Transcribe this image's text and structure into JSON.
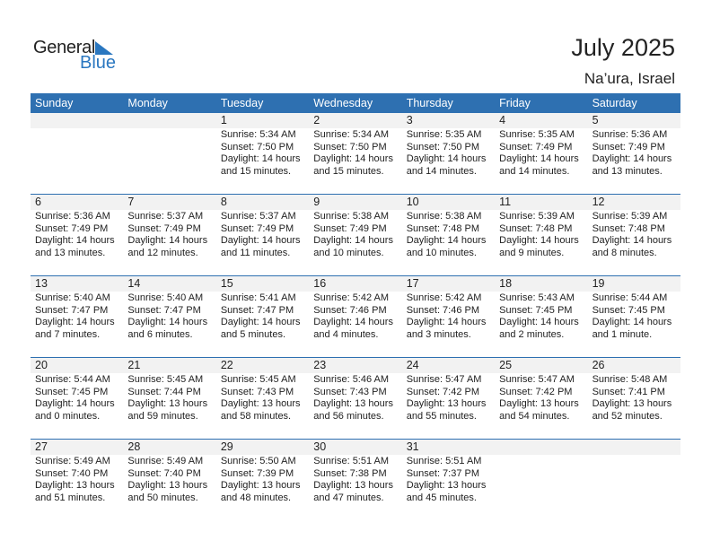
{
  "logo": {
    "word1": "General",
    "word2": "Blue",
    "accent": "#2a77c0"
  },
  "title": "July 2025",
  "location": "Na’ura, Israel",
  "colors": {
    "header_bg": "#2e70b1",
    "band_bg": "#f2f2f2"
  },
  "weekdays": [
    "Sunday",
    "Monday",
    "Tuesday",
    "Wednesday",
    "Thursday",
    "Friday",
    "Saturday"
  ],
  "weeks": [
    [
      null,
      null,
      {
        "day": "1",
        "sunrise": "Sunrise: 5:34 AM",
        "sunset": "Sunset: 7:50 PM",
        "daylight": "Daylight: 14 hours",
        "minutes": "and 15 minutes."
      },
      {
        "day": "2",
        "sunrise": "Sunrise: 5:34 AM",
        "sunset": "Sunset: 7:50 PM",
        "daylight": "Daylight: 14 hours",
        "minutes": "and 15 minutes."
      },
      {
        "day": "3",
        "sunrise": "Sunrise: 5:35 AM",
        "sunset": "Sunset: 7:50 PM",
        "daylight": "Daylight: 14 hours",
        "minutes": "and 14 minutes."
      },
      {
        "day": "4",
        "sunrise": "Sunrise: 5:35 AM",
        "sunset": "Sunset: 7:49 PM",
        "daylight": "Daylight: 14 hours",
        "minutes": "and 14 minutes."
      },
      {
        "day": "5",
        "sunrise": "Sunrise: 5:36 AM",
        "sunset": "Sunset: 7:49 PM",
        "daylight": "Daylight: 14 hours",
        "minutes": "and 13 minutes."
      }
    ],
    [
      {
        "day": "6",
        "sunrise": "Sunrise: 5:36 AM",
        "sunset": "Sunset: 7:49 PM",
        "daylight": "Daylight: 14 hours",
        "minutes": "and 13 minutes."
      },
      {
        "day": "7",
        "sunrise": "Sunrise: 5:37 AM",
        "sunset": "Sunset: 7:49 PM",
        "daylight": "Daylight: 14 hours",
        "minutes": "and 12 minutes."
      },
      {
        "day": "8",
        "sunrise": "Sunrise: 5:37 AM",
        "sunset": "Sunset: 7:49 PM",
        "daylight": "Daylight: 14 hours",
        "minutes": "and 11 minutes."
      },
      {
        "day": "9",
        "sunrise": "Sunrise: 5:38 AM",
        "sunset": "Sunset: 7:49 PM",
        "daylight": "Daylight: 14 hours",
        "minutes": "and 10 minutes."
      },
      {
        "day": "10",
        "sunrise": "Sunrise: 5:38 AM",
        "sunset": "Sunset: 7:48 PM",
        "daylight": "Daylight: 14 hours",
        "minutes": "and 10 minutes."
      },
      {
        "day": "11",
        "sunrise": "Sunrise: 5:39 AM",
        "sunset": "Sunset: 7:48 PM",
        "daylight": "Daylight: 14 hours",
        "minutes": "and 9 minutes."
      },
      {
        "day": "12",
        "sunrise": "Sunrise: 5:39 AM",
        "sunset": "Sunset: 7:48 PM",
        "daylight": "Daylight: 14 hours",
        "minutes": "and 8 minutes."
      }
    ],
    [
      {
        "day": "13",
        "sunrise": "Sunrise: 5:40 AM",
        "sunset": "Sunset: 7:47 PM",
        "daylight": "Daylight: 14 hours",
        "minutes": "and 7 minutes."
      },
      {
        "day": "14",
        "sunrise": "Sunrise: 5:40 AM",
        "sunset": "Sunset: 7:47 PM",
        "daylight": "Daylight: 14 hours",
        "minutes": "and 6 minutes."
      },
      {
        "day": "15",
        "sunrise": "Sunrise: 5:41 AM",
        "sunset": "Sunset: 7:47 PM",
        "daylight": "Daylight: 14 hours",
        "minutes": "and 5 minutes."
      },
      {
        "day": "16",
        "sunrise": "Sunrise: 5:42 AM",
        "sunset": "Sunset: 7:46 PM",
        "daylight": "Daylight: 14 hours",
        "minutes": "and 4 minutes."
      },
      {
        "day": "17",
        "sunrise": "Sunrise: 5:42 AM",
        "sunset": "Sunset: 7:46 PM",
        "daylight": "Daylight: 14 hours",
        "minutes": "and 3 minutes."
      },
      {
        "day": "18",
        "sunrise": "Sunrise: 5:43 AM",
        "sunset": "Sunset: 7:45 PM",
        "daylight": "Daylight: 14 hours",
        "minutes": "and 2 minutes."
      },
      {
        "day": "19",
        "sunrise": "Sunrise: 5:44 AM",
        "sunset": "Sunset: 7:45 PM",
        "daylight": "Daylight: 14 hours",
        "minutes": "and 1 minute."
      }
    ],
    [
      {
        "day": "20",
        "sunrise": "Sunrise: 5:44 AM",
        "sunset": "Sunset: 7:45 PM",
        "daylight": "Daylight: 14 hours",
        "minutes": "and 0 minutes."
      },
      {
        "day": "21",
        "sunrise": "Sunrise: 5:45 AM",
        "sunset": "Sunset: 7:44 PM",
        "daylight": "Daylight: 13 hours",
        "minutes": "and 59 minutes."
      },
      {
        "day": "22",
        "sunrise": "Sunrise: 5:45 AM",
        "sunset": "Sunset: 7:43 PM",
        "daylight": "Daylight: 13 hours",
        "minutes": "and 58 minutes."
      },
      {
        "day": "23",
        "sunrise": "Sunrise: 5:46 AM",
        "sunset": "Sunset: 7:43 PM",
        "daylight": "Daylight: 13 hours",
        "minutes": "and 56 minutes."
      },
      {
        "day": "24",
        "sunrise": "Sunrise: 5:47 AM",
        "sunset": "Sunset: 7:42 PM",
        "daylight": "Daylight: 13 hours",
        "minutes": "and 55 minutes."
      },
      {
        "day": "25",
        "sunrise": "Sunrise: 5:47 AM",
        "sunset": "Sunset: 7:42 PM",
        "daylight": "Daylight: 13 hours",
        "minutes": "and 54 minutes."
      },
      {
        "day": "26",
        "sunrise": "Sunrise: 5:48 AM",
        "sunset": "Sunset: 7:41 PM",
        "daylight": "Daylight: 13 hours",
        "minutes": "and 52 minutes."
      }
    ],
    [
      {
        "day": "27",
        "sunrise": "Sunrise: 5:49 AM",
        "sunset": "Sunset: 7:40 PM",
        "daylight": "Daylight: 13 hours",
        "minutes": "and 51 minutes."
      },
      {
        "day": "28",
        "sunrise": "Sunrise: 5:49 AM",
        "sunset": "Sunset: 7:40 PM",
        "daylight": "Daylight: 13 hours",
        "minutes": "and 50 minutes."
      },
      {
        "day": "29",
        "sunrise": "Sunrise: 5:50 AM",
        "sunset": "Sunset: 7:39 PM",
        "daylight": "Daylight: 13 hours",
        "minutes": "and 48 minutes."
      },
      {
        "day": "30",
        "sunrise": "Sunrise: 5:51 AM",
        "sunset": "Sunset: 7:38 PM",
        "daylight": "Daylight: 13 hours",
        "minutes": "and 47 minutes."
      },
      {
        "day": "31",
        "sunrise": "Sunrise: 5:51 AM",
        "sunset": "Sunset: 7:37 PM",
        "daylight": "Daylight: 13 hours",
        "minutes": "and 45 minutes."
      },
      null,
      null
    ]
  ]
}
